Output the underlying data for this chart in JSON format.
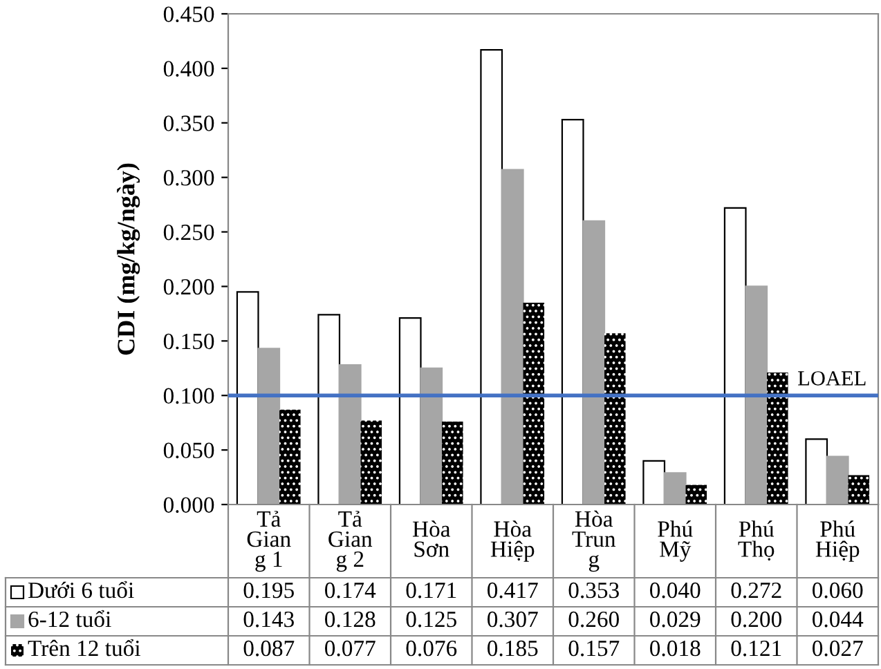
{
  "chart_data": {
    "type": "bar",
    "ylabel": "CDI (mg/kg/ngày)",
    "categories": [
      "Tả\nGian\ng 1",
      "Tả\nGian\ng 2",
      "Hòa\nSơn",
      "Hòa\nHiệp",
      "Hòa\nTrun\ng",
      "Phú\nMỹ",
      "Phú\nThọ",
      "Phú\nHiệp"
    ],
    "series": [
      {
        "name": "Dưới 6 tuổi",
        "color": "#ffffff",
        "values": [
          0.195,
          0.174,
          0.171,
          0.417,
          0.353,
          0.04,
          0.272,
          0.06
        ],
        "value_labels": [
          "0.195",
          "0.174",
          "0.171",
          "0.417",
          "0.353",
          "0.040",
          "0.272",
          "0.060"
        ]
      },
      {
        "name": "6-12 tuổi",
        "color": "#a6a6a6",
        "values": [
          0.143,
          0.128,
          0.125,
          0.307,
          0.26,
          0.029,
          0.2,
          0.044
        ],
        "value_labels": [
          "0.143",
          "0.128",
          "0.125",
          "0.307",
          "0.260",
          "0.029",
          "0.200",
          "0.044"
        ]
      },
      {
        "name": "Trên 12 tuổi",
        "color": "#000000",
        "values": [
          0.087,
          0.077,
          0.076,
          0.185,
          0.157,
          0.018,
          0.121,
          0.027
        ],
        "value_labels": [
          "0.087",
          "0.077",
          "0.076",
          "0.185",
          "0.157",
          "0.018",
          "0.121",
          "0.027"
        ]
      }
    ],
    "ylim": [
      0,
      0.45
    ],
    "yticks": [
      {
        "value": 0,
        "label": "0.000"
      },
      {
        "value": 0.05,
        "label": "0.050"
      },
      {
        "value": 0.1,
        "label": "0.100"
      },
      {
        "value": 0.15,
        "label": "0.150"
      },
      {
        "value": 0.2,
        "label": "0.200"
      },
      {
        "value": 0.25,
        "label": "0.250"
      },
      {
        "value": 0.3,
        "label": "0.300"
      },
      {
        "value": 0.35,
        "label": "0.350"
      },
      {
        "value": 0.4,
        "label": "0.400"
      },
      {
        "value": 0.45,
        "label": "0.450"
      }
    ],
    "ref_lines": [
      {
        "axis": "y",
        "value": 0.1,
        "label": "LOAEL",
        "color": "#4472c4"
      }
    ],
    "grid": false,
    "legend": "bottom"
  }
}
